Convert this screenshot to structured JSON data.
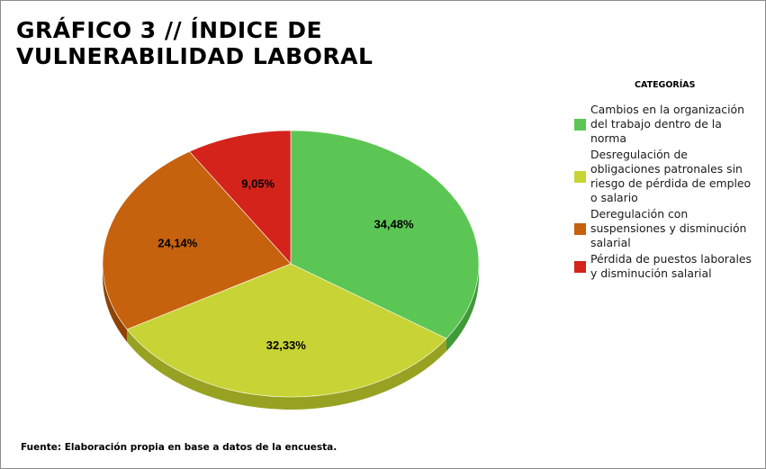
{
  "chart_data": {
    "type": "pie",
    "title": "GRÁFICO 3 // ÍNDICE DE VULNERABILIDAD LABORAL",
    "legend_title": "CATEGORÍAS",
    "legend_position": "right",
    "source": "Fuente: Elaboración propia en base a datos de la encuesta.",
    "slices": [
      {
        "label": "Cambios en la organización\ndel trabajo dentro de la\nnorma",
        "value": 34.48,
        "display": "34,48%",
        "color": "#5cc654",
        "side_color": "#3f9a38"
      },
      {
        "label": "Desregulación de\nobligaciones patronales sin\nriesgo de pérdida de empleo\no salario",
        "value": 32.33,
        "display": "32,33%",
        "color": "#c8d435",
        "side_color": "#98a222"
      },
      {
        "label": "Deregulación con\nsuspensiones y disminución\nsalarial",
        "value": 24.14,
        "display": "24,14%",
        "color": "#c6620d",
        "side_color": "#8e4305"
      },
      {
        "label": "Pérdida de puestos laborales\ny disminución salarial",
        "value": 9.05,
        "display": "9,05%",
        "color": "#d4231b",
        "side_color": "#951510"
      }
    ]
  }
}
